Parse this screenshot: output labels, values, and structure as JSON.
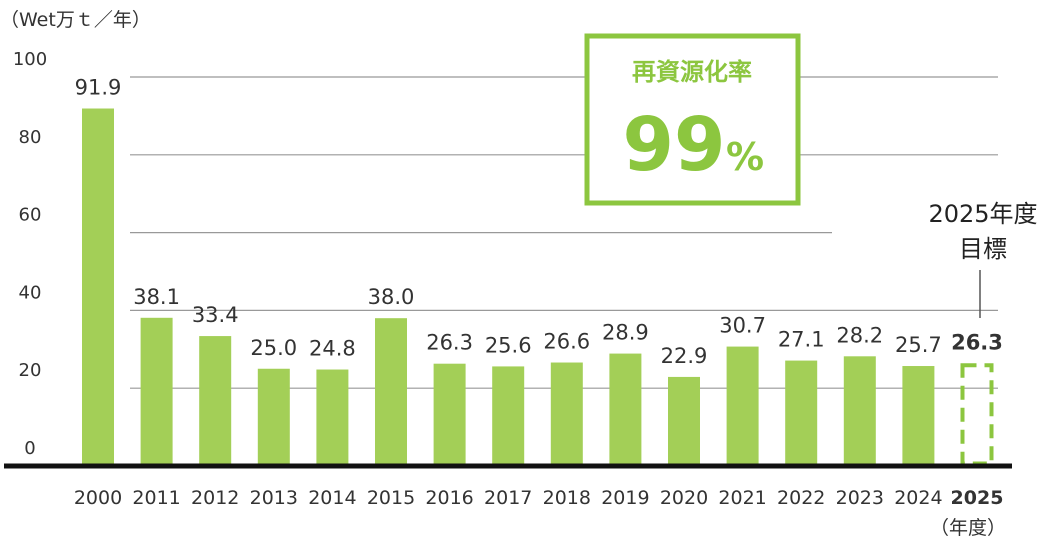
{
  "chart_data": {
    "type": "bar",
    "ylabel": "（Wet万ｔ／年）",
    "xlabel": "（年度）",
    "ylim": [
      0,
      100
    ],
    "yticks": [
      0,
      20,
      40,
      60,
      80,
      100
    ],
    "grid": true,
    "categories": [
      "2000",
      "2011",
      "2012",
      "2013",
      "2014",
      "2015",
      "2016",
      "2017",
      "2018",
      "2019",
      "2020",
      "2021",
      "2022",
      "2023",
      "2024",
      "2025"
    ],
    "values": [
      91.9,
      38.1,
      33.4,
      25.0,
      24.8,
      38.0,
      26.3,
      25.6,
      26.6,
      28.9,
      22.9,
      30.7,
      27.1,
      28.2,
      25.7,
      26.3
    ],
    "value_labels": [
      "91.9",
      "38.1",
      "33.4",
      "25.0",
      "24.8",
      "38.0",
      "26.3",
      "25.6",
      "26.6",
      "28.9",
      "22.9",
      "30.7",
      "27.1",
      "28.2",
      "25.7",
      "26.3"
    ],
    "target_index": 15,
    "target_label_line1": "2025年度",
    "target_label_line2": "目標",
    "bar_color": "#a3cf57",
    "target_color": "#8cc63f",
    "axis_color": "#111111",
    "grid_color": "#999999",
    "text_color": "#333333"
  },
  "highlight": {
    "title": "再資源化率",
    "value": "99",
    "unit": "%",
    "color": "#8cc63f"
  }
}
